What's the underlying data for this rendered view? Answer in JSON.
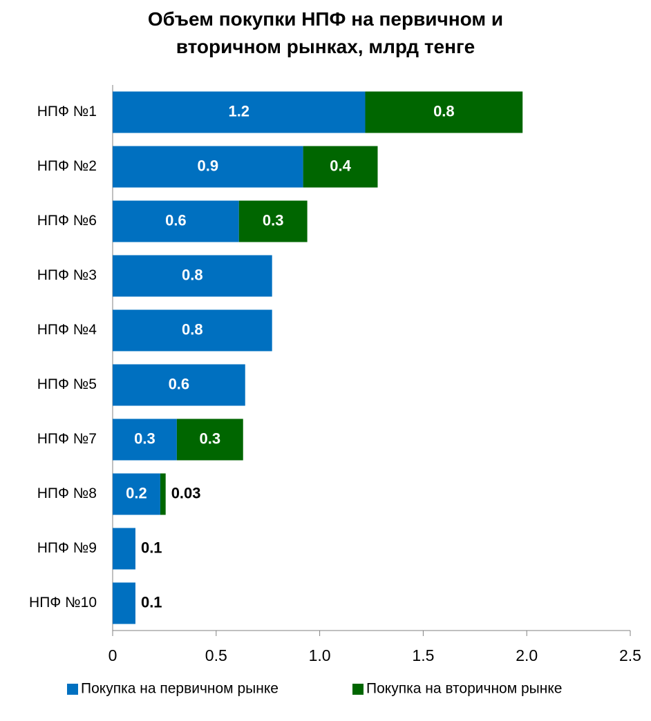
{
  "chart_data": {
    "type": "stacked-barh",
    "title": "Объем покупки НПФ на первичном и вторичном рынках, млрд тенге",
    "categories": [
      "НПФ №1",
      "НПФ №2",
      "НПФ №6",
      "НПФ №3",
      "НПФ №4",
      "НПФ №5",
      "НПФ №7",
      "НПФ №8",
      "НПФ №9",
      "НПФ №10"
    ],
    "series": [
      {
        "name": "Покупка на первичном рынке",
        "color": "#0070c0",
        "values": [
          1.22,
          0.92,
          0.61,
          0.77,
          0.77,
          0.64,
          0.31,
          0.23,
          0.11,
          0.11
        ],
        "value_labels": [
          "1.2",
          "0.9",
          "0.6",
          "0.8",
          "0.8",
          "0.6",
          "0.3",
          "0.2",
          "0.1",
          "0.1"
        ]
      },
      {
        "name": "Покупка на вторичном рынке",
        "color": "#006600",
        "values": [
          0.76,
          0.36,
          0.33,
          null,
          null,
          null,
          0.32,
          0.026,
          null,
          null
        ],
        "value_labels": [
          "0.8",
          "0.4",
          "0.3",
          null,
          null,
          null,
          "0.3",
          "0.03",
          null,
          null
        ]
      }
    ],
    "xlim": [
      0,
      2.5
    ],
    "xticks": [
      0,
      0.5,
      {
        "value": 1,
        "label": "1.0"
      },
      1.5,
      {
        "value": 2,
        "label": "2.0"
      },
      2.5
    ],
    "legend": "bottom"
  }
}
